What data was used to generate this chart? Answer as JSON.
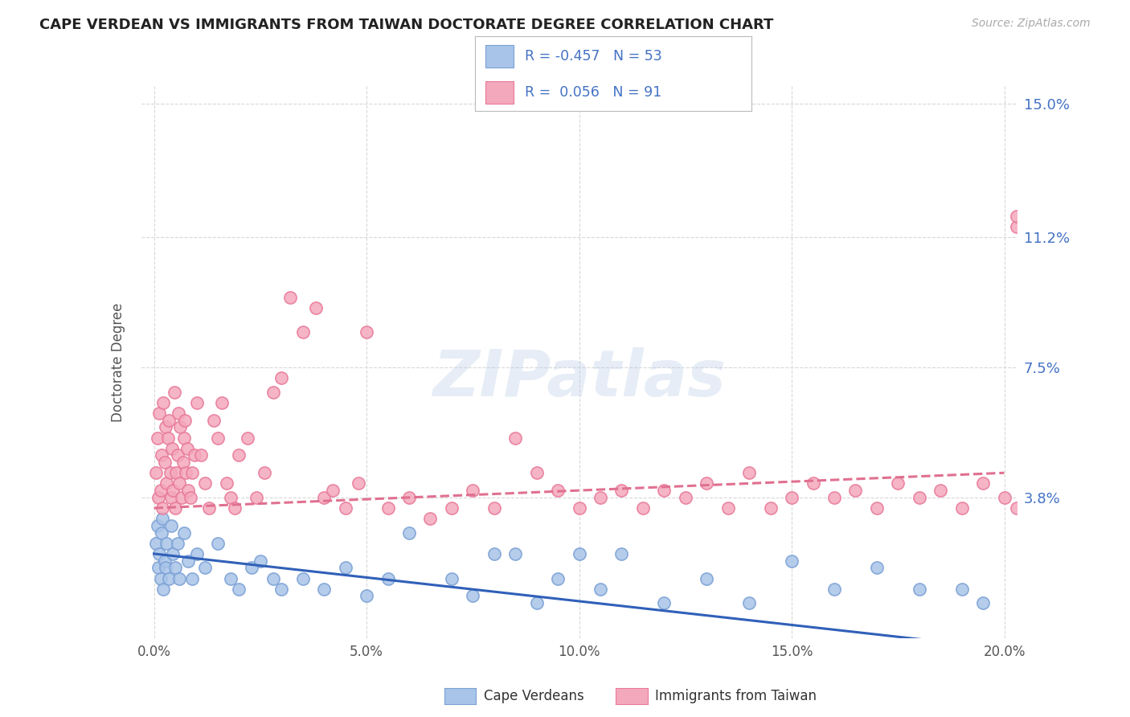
{
  "title": "CAPE VERDEAN VS IMMIGRANTS FROM TAIWAN DOCTORATE DEGREE CORRELATION CHART",
  "source": "Source: ZipAtlas.com",
  "xlabel_tick_vals": [
    0.0,
    5.0,
    10.0,
    15.0,
    20.0
  ],
  "ylabel": "Doctorate Degree",
  "ylabel_ticks_labels": [
    "15.0%",
    "11.2%",
    "7.5%",
    "3.8%"
  ],
  "ylabel_ticks_vals": [
    15.0,
    11.2,
    7.5,
    3.8
  ],
  "xlim": [
    -0.3,
    20.3
  ],
  "ylim": [
    -0.2,
    15.5
  ],
  "watermark": "ZIPatlas",
  "legend_cv_R": -0.457,
  "legend_cv_N": 53,
  "legend_tw_R": 0.056,
  "legend_tw_N": 91,
  "legend_cv_color": "#a8c4e8",
  "legend_tw_color": "#f4a8bc",
  "cv_dot_color": "#a8c4e8",
  "tw_dot_color": "#f4a8bc",
  "cv_edge_color": "#7aa0d4",
  "tw_edge_color": "#e87898",
  "trend_cv_color": "#3060b8",
  "trend_tw_color": "#e07090",
  "grid_color": "#d8d8d8",
  "background_color": "#ffffff",
  "cv_trend_x0": 0.0,
  "cv_trend_y0": 2.2,
  "cv_trend_x1": 20.0,
  "cv_trend_y1": -0.5,
  "tw_trend_x0": 0.0,
  "tw_trend_y0": 3.5,
  "tw_trend_x1": 20.0,
  "tw_trend_y1": 4.5,
  "cv_x": [
    0.05,
    0.08,
    0.1,
    0.12,
    0.15,
    0.18,
    0.2,
    0.22,
    0.25,
    0.28,
    0.3,
    0.35,
    0.4,
    0.45,
    0.5,
    0.55,
    0.6,
    0.7,
    0.8,
    0.9,
    1.0,
    1.2,
    1.5,
    1.8,
    2.0,
    2.3,
    2.5,
    2.8,
    3.0,
    3.5,
    4.0,
    4.5,
    5.0,
    5.5,
    6.0,
    7.0,
    7.5,
    8.0,
    8.5,
    9.0,
    9.5,
    10.0,
    10.5,
    11.0,
    12.0,
    13.0,
    14.0,
    15.0,
    16.0,
    17.0,
    18.0,
    19.0,
    19.5
  ],
  "cv_y": [
    2.5,
    3.0,
    1.8,
    2.2,
    1.5,
    2.8,
    3.2,
    1.2,
    2.0,
    1.8,
    2.5,
    1.5,
    3.0,
    2.2,
    1.8,
    2.5,
    1.5,
    2.8,
    2.0,
    1.5,
    2.2,
    1.8,
    2.5,
    1.5,
    1.2,
    1.8,
    2.0,
    1.5,
    1.2,
    1.5,
    1.2,
    1.8,
    1.0,
    1.5,
    2.8,
    1.5,
    1.0,
    2.2,
    2.2,
    0.8,
    1.5,
    2.2,
    1.2,
    2.2,
    0.8,
    1.5,
    0.8,
    2.0,
    1.2,
    1.8,
    1.2,
    1.2,
    0.8
  ],
  "tw_x": [
    0.05,
    0.08,
    0.1,
    0.12,
    0.15,
    0.18,
    0.2,
    0.22,
    0.25,
    0.28,
    0.3,
    0.32,
    0.35,
    0.38,
    0.4,
    0.42,
    0.45,
    0.48,
    0.5,
    0.52,
    0.55,
    0.58,
    0.6,
    0.62,
    0.65,
    0.68,
    0.7,
    0.72,
    0.75,
    0.78,
    0.8,
    0.85,
    0.9,
    0.95,
    1.0,
    1.1,
    1.2,
    1.3,
    1.4,
    1.5,
    1.6,
    1.7,
    1.8,
    1.9,
    2.0,
    2.2,
    2.4,
    2.6,
    2.8,
    3.0,
    3.2,
    3.5,
    3.8,
    4.0,
    4.2,
    4.5,
    4.8,
    5.0,
    5.5,
    6.0,
    6.5,
    7.0,
    7.5,
    8.0,
    8.5,
    9.0,
    9.5,
    10.0,
    10.5,
    11.0,
    11.5,
    12.0,
    12.5,
    13.0,
    13.5,
    14.0,
    14.5,
    15.0,
    15.5,
    16.0,
    16.5,
    17.0,
    17.5,
    18.0,
    18.5,
    19.0,
    19.5,
    20.0,
    20.3,
    20.3,
    20.3
  ],
  "tw_y": [
    4.5,
    5.5,
    3.8,
    6.2,
    4.0,
    5.0,
    3.5,
    6.5,
    4.8,
    5.8,
    4.2,
    5.5,
    6.0,
    4.5,
    3.8,
    5.2,
    4.0,
    6.8,
    3.5,
    4.5,
    5.0,
    6.2,
    4.2,
    5.8,
    3.8,
    4.8,
    5.5,
    6.0,
    4.5,
    5.2,
    4.0,
    3.8,
    4.5,
    5.0,
    6.5,
    5.0,
    4.2,
    3.5,
    6.0,
    5.5,
    6.5,
    4.2,
    3.8,
    3.5,
    5.0,
    5.5,
    3.8,
    4.5,
    6.8,
    7.2,
    9.5,
    8.5,
    9.2,
    3.8,
    4.0,
    3.5,
    4.2,
    8.5,
    3.5,
    3.8,
    3.2,
    3.5,
    4.0,
    3.5,
    5.5,
    4.5,
    4.0,
    3.5,
    3.8,
    4.0,
    3.5,
    4.0,
    3.8,
    4.2,
    3.5,
    4.5,
    3.5,
    3.8,
    4.2,
    3.8,
    4.0,
    3.5,
    4.2,
    3.8,
    4.0,
    3.5,
    4.2,
    3.8,
    11.5,
    11.8,
    3.5
  ]
}
